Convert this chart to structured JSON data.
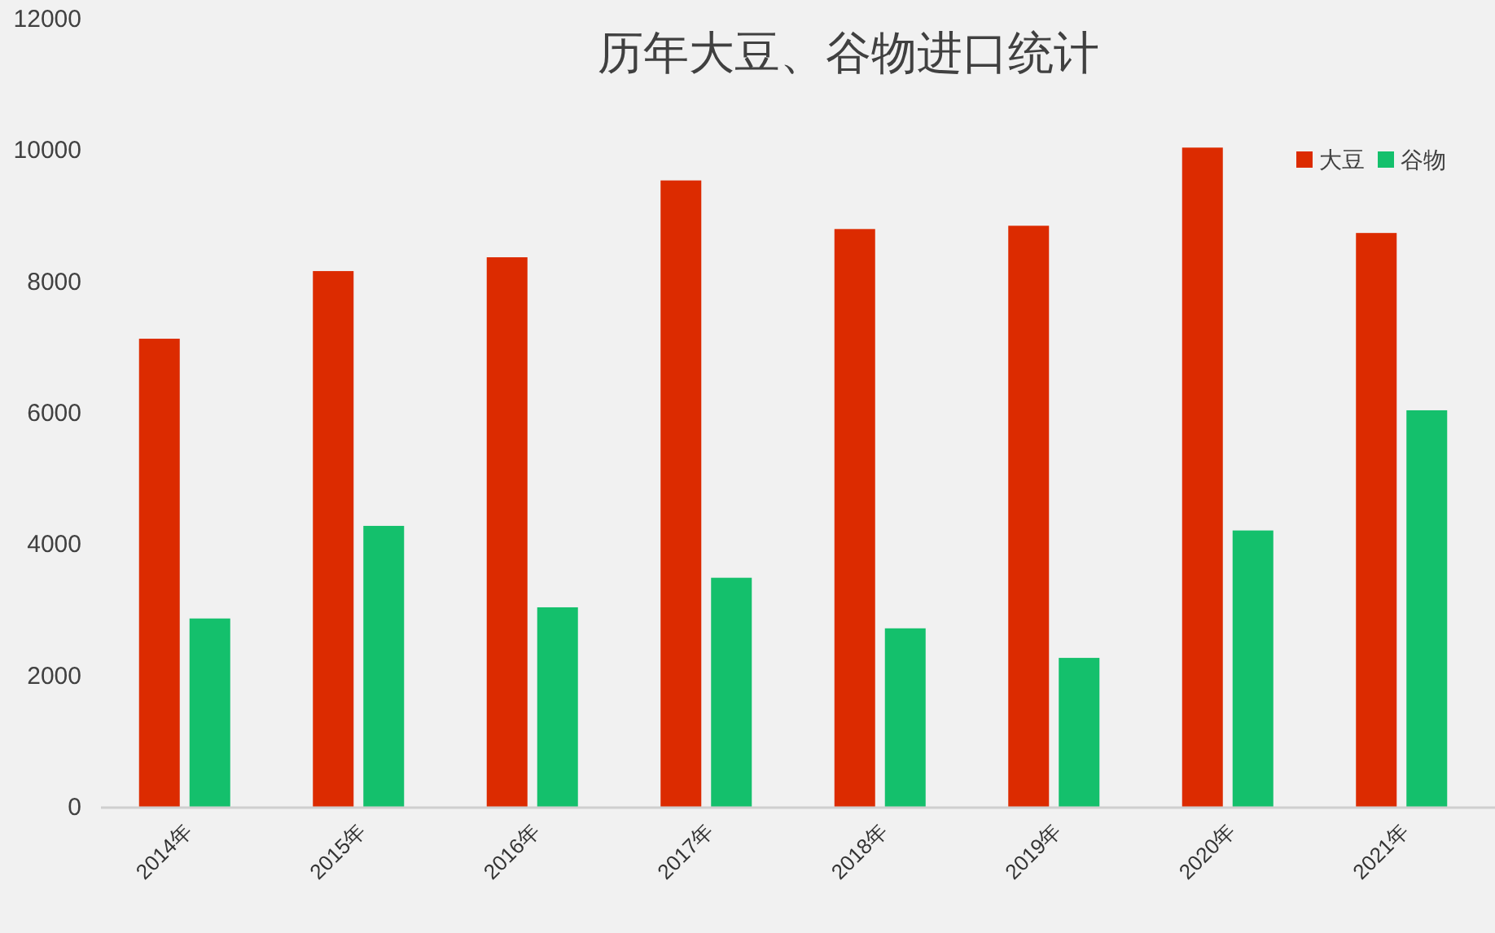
{
  "chart_data": {
    "type": "bar",
    "title": "历年大豆、谷物进口统计",
    "categories": [
      "2014年",
      "2015年",
      "2016年",
      "2017年",
      "2018年",
      "2019年",
      "2020年",
      "2021年"
    ],
    "series": [
      {
        "name": "大豆",
        "color": "#dc2b00",
        "values": [
          7140,
          8170,
          8380,
          9550,
          8810,
          8860,
          10050,
          8750
        ]
      },
      {
        "name": "谷物",
        "color": "#14c06c",
        "values": [
          2880,
          4290,
          3050,
          3500,
          2730,
          2280,
          4220,
          6050
        ]
      }
    ],
    "ylim": [
      0,
      12000
    ],
    "yticks": [
      0,
      2000,
      4000,
      6000,
      8000,
      10000,
      12000
    ],
    "legend": "top right"
  }
}
